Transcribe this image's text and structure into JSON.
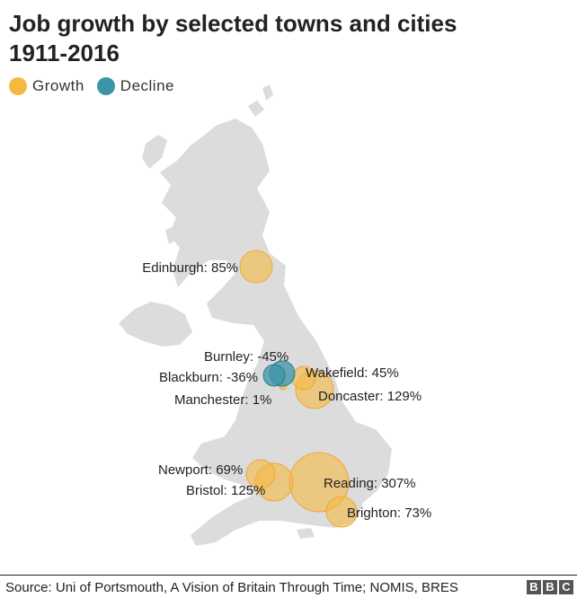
{
  "title": "Job growth by selected towns and cities 1911-2016",
  "legend": [
    {
      "label": "Growth",
      "color": "#f5b942"
    },
    {
      "label": "Decline",
      "color": "#3b94a8"
    }
  ],
  "cities": [
    {
      "name": "Edinburgh",
      "value": 85,
      "label": "Edinburgh: 85%",
      "type": "growth"
    },
    {
      "name": "Burnley",
      "value": -45,
      "label": "Burnley: -45%",
      "type": "decline"
    },
    {
      "name": "Blackburn",
      "value": -36,
      "label": "Blackburn: -36%",
      "type": "decline"
    },
    {
      "name": "Wakefield",
      "value": 45,
      "label": "Wakefield: 45%",
      "type": "growth"
    },
    {
      "name": "Manchester",
      "value": 1,
      "label": "Manchester: 1%",
      "type": "growth"
    },
    {
      "name": "Doncaster",
      "value": 129,
      "label": "Doncaster: 129%",
      "type": "growth"
    },
    {
      "name": "Newport",
      "value": 69,
      "label": "Newport: 69%",
      "type": "growth"
    },
    {
      "name": "Reading",
      "value": 307,
      "label": "Reading: 307%",
      "type": "growth"
    },
    {
      "name": "Bristol",
      "value": 125,
      "label": "Bristol: 125%",
      "type": "growth"
    },
    {
      "name": "Brighton",
      "value": 73,
      "label": "Brighton: 73%",
      "type": "growth"
    }
  ],
  "source": "Source: Uni of Portsmouth, A Vision of Britain Through Time; NOMIS, BRES",
  "logo": [
    "B",
    "B",
    "C"
  ]
}
